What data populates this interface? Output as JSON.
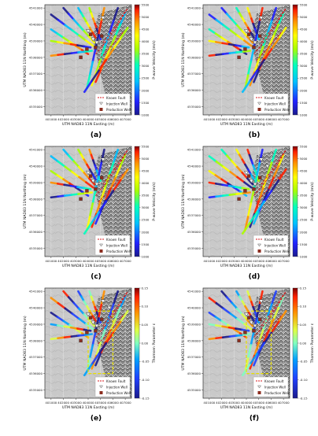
{
  "colors": {
    "map_bg": "#c9c9c9",
    "terrain_dark": "#5a5a5a",
    "fault": "#d7191c",
    "injection": "#e6e6e6",
    "production": "#8c2d1f",
    "box": "#e8e000"
  },
  "common": {
    "x_label": "UTM NAD83 11N Easting (m)",
    "y_label": "UTM NAD83 11N Northing (m)",
    "x_ticks": [
      "401000",
      "402000",
      "403000",
      "404000",
      "405000",
      "406000",
      "407000"
    ],
    "y_ticks": [
      "4541000",
      "4540000",
      "4539000",
      "4538000",
      "4537000",
      "4536000",
      "4535000"
    ],
    "legend": [
      "Known Fault",
      "Injection Well",
      "Production Well"
    ]
  },
  "panels": [
    {
      "letter": "(a)",
      "colorbar_label": "P-wave Velocity (m/s)",
      "cb_ticks": [
        "5500",
        "5000",
        "4500",
        "4000",
        "3500",
        "3000",
        "2500",
        "2000",
        "1500",
        "1000"
      ],
      "scale": "velocity",
      "box": false
    },
    {
      "letter": "(b)",
      "colorbar_label": "P-wave Velocity (m/s)",
      "cb_ticks": [
        "5500",
        "5000",
        "4500",
        "4000",
        "3500",
        "3000",
        "2500",
        "2000",
        "1500",
        "1000"
      ],
      "scale": "velocity",
      "box": false
    },
    {
      "letter": "(c)",
      "colorbar_label": "P-wave Velocity (m/s)",
      "cb_ticks": [
        "5500",
        "5000",
        "4500",
        "4000",
        "3500",
        "3000",
        "2500",
        "2000",
        "1500",
        "1000"
      ],
      "scale": "velocity",
      "box": false
    },
    {
      "letter": "(d)",
      "colorbar_label": "P-wave Velocity (m/s)",
      "cb_ticks": [
        "5500",
        "5000",
        "4500",
        "4000",
        "3500",
        "3000",
        "2500",
        "2000",
        "1500",
        "1000"
      ],
      "scale": "velocity",
      "box": false
    },
    {
      "letter": "(e)",
      "colorbar_label": "Thomsen Parameter ε",
      "cb_ticks": [
        "0.15",
        "0.10",
        "0.05",
        "0.00",
        "-0.05",
        "-0.10",
        "-0.15"
      ],
      "scale": "diverging",
      "box": true
    },
    {
      "letter": "(f)",
      "colorbar_label": "Thomsen Parameter ε",
      "cb_ticks": [
        "0.15",
        "0.10",
        "0.05",
        "0.00",
        "-0.05",
        "-0.10",
        "-0.15"
      ],
      "scale": "diverging",
      "box": true
    }
  ],
  "chart_data": {
    "type": "heatmap",
    "note_x": "UTM Easting (m)",
    "xlim": [
      400500,
      407500
    ],
    "ylim": [
      4534500,
      4541200
    ],
    "profiles": [
      {
        "x": [
          401000,
          404400
        ],
        "y": [
          4540600,
          4538700
        ]
      },
      {
        "x": [
          401000,
          404000
        ],
        "y": [
          4539700,
          4538200
        ]
      },
      {
        "x": [
          401000,
          404200
        ],
        "y": [
          4539000,
          4538600
        ]
      },
      {
        "x": [
          401000,
          404300
        ],
        "y": [
          4538100,
          4538400
        ]
      },
      {
        "x": [
          402000,
          404500
        ],
        "y": [
          4541000,
          4538900
        ]
      },
      {
        "x": [
          403200,
          404600
        ],
        "y": [
          4541000,
          4539200
        ]
      },
      {
        "x": [
          404100,
          405000
        ],
        "y": [
          4541000,
          4539100
        ]
      },
      {
        "x": [
          405300,
          403900
        ],
        "y": [
          4541000,
          4536100
        ]
      },
      {
        "x": [
          406400,
          404300
        ],
        "y": [
          4541000,
          4536300
        ]
      },
      {
        "x": [
          407000,
          404600
        ],
        "y": [
          4540700,
          4536500
        ]
      },
      {
        "x": [
          407200,
          403700
        ],
        "y": [
          4539800,
          4535900
        ]
      }
    ],
    "faults": [
      {
        "x": [
          404600,
          405600,
          406600,
          407200
        ],
        "y": [
          4538200,
          4539100,
          4540200,
          4541000
        ]
      },
      {
        "x": [
          404800,
          405900,
          406900
        ],
        "y": [
          4537800,
          4538700,
          4539600
        ]
      },
      {
        "x": [
          405200,
          406200,
          407100
        ],
        "y": [
          4538900,
          4539900,
          4540900
        ]
      }
    ],
    "injection_wells": [
      [
        404000,
        4539600
      ],
      [
        404400,
        4539100
      ],
      [
        405200,
        4540400
      ],
      [
        404700,
        4538900
      ],
      [
        405700,
        4540000
      ]
    ],
    "production_wells": [
      [
        403400,
        4538000
      ],
      [
        404600,
        4538600
      ],
      [
        404200,
        4539400
      ],
      [
        403900,
        4538500
      ],
      [
        405100,
        4539300
      ]
    ],
    "study_box": {
      "x": [
        404000,
        406000
      ],
      "y": [
        4536000,
        4539800
      ]
    }
  }
}
